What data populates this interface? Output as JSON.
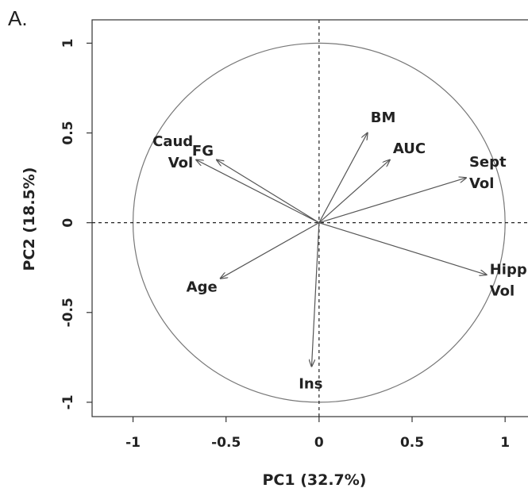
{
  "panel_label": "A.",
  "chart_data": {
    "type": "scatter",
    "subtype": "pca-correlation-circle",
    "title": "",
    "xlabel": "PC1 (32.7%)",
    "ylabel": "PC2 (18.5%)",
    "xlim": [
      -1.22,
      1.17
    ],
    "ylim": [
      -1.08,
      1.13
    ],
    "xticks": [
      {
        "value": -1,
        "label": "-1"
      },
      {
        "value": -0.5,
        "label": "-0.5"
      },
      {
        "value": 0,
        "label": "0"
      },
      {
        "value": 0.5,
        "label": "0.5"
      },
      {
        "value": 1,
        "label": "1"
      }
    ],
    "yticks": [
      {
        "value": -1,
        "label": "-1"
      },
      {
        "value": -0.5,
        "label": "-0.5"
      },
      {
        "value": 0,
        "label": "0"
      },
      {
        "value": 0.5,
        "label": "0.5"
      },
      {
        "value": 1,
        "label": "1"
      }
    ],
    "unit_circle": true,
    "reference_lines": [
      "x=0 dashed",
      "y=0 dashed"
    ],
    "vectors": [
      {
        "name": "BM",
        "label_lines": [
          "BM"
        ],
        "x": 0.26,
        "y": 0.5
      },
      {
        "name": "AUC",
        "label_lines": [
          "AUC"
        ],
        "x": 0.38,
        "y": 0.35
      },
      {
        "name": "Sept Vol",
        "label_lines": [
          "Sept",
          "Vol"
        ],
        "x": 0.79,
        "y": 0.25
      },
      {
        "name": "Hipp Vol",
        "label_lines": [
          "Hipp",
          "Vol"
        ],
        "x": 0.9,
        "y": -0.29
      },
      {
        "name": "FG",
        "label_lines": [
          "FG"
        ],
        "x": -0.55,
        "y": 0.35
      },
      {
        "name": "Caud Vol",
        "label_lines": [
          "Caud",
          "Vol"
        ],
        "x": -0.66,
        "y": 0.35
      },
      {
        "name": "Age",
        "label_lines": [
          "Age"
        ],
        "x": -0.53,
        "y": -0.31
      },
      {
        "name": "Ins",
        "label_lines": [
          "Ins"
        ],
        "x": -0.04,
        "y": -0.8
      }
    ]
  }
}
